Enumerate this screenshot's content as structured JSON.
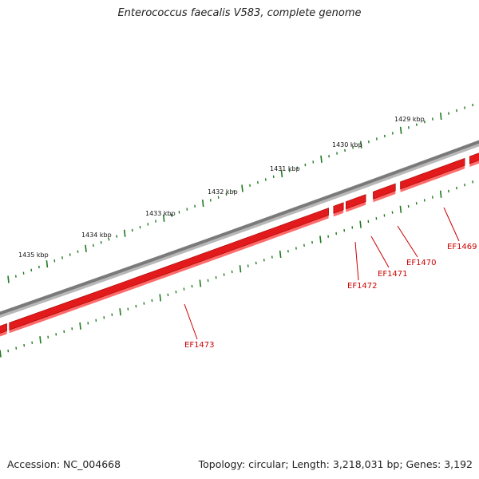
{
  "title": "Enterococcus faecalis V583, complete genome",
  "footer": {
    "accession": "Accession: NC_004668",
    "summary": "Topology: circular; Length: 3,218,031 bp; Genes: 3,192"
  },
  "colors": {
    "backbone": "#7a7a7a",
    "gene_fill": "#e31a1c",
    "gene_shadow": "#ff6b6b",
    "tick": "#1f7a1f",
    "gene_label": "#cc0000",
    "text": "#222222"
  },
  "scale": {
    "unit": "kbp",
    "labels": [
      "1429 kbp",
      "1430 kbp",
      "1431 kbp",
      "1432 kbp",
      "1433 kbp",
      "1434 kbp",
      "1435 kbp"
    ]
  },
  "genes": [
    {
      "name": "EF1469"
    },
    {
      "name": "EF1470"
    },
    {
      "name": "EF1471"
    },
    {
      "name": "EF1472"
    },
    {
      "name": "EF1473"
    }
  ]
}
